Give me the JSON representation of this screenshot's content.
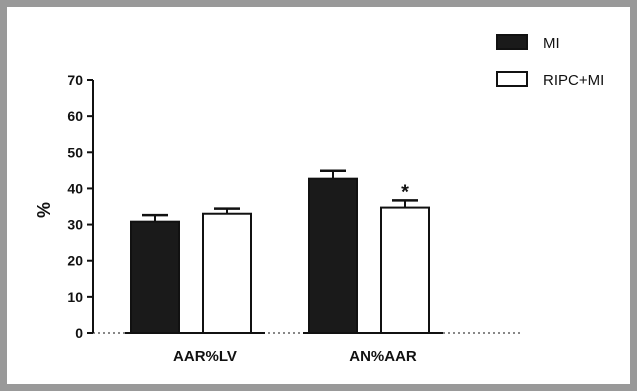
{
  "chart_data": {
    "type": "bar",
    "categories": [
      "AAR%LV",
      "AN%AAR"
    ],
    "series": [
      {
        "name": "MI",
        "values": [
          30.8,
          42.7
        ],
        "errors": [
          1.8,
          2.2
        ],
        "color": "#1a1a1a"
      },
      {
        "name": "RIPC+MI",
        "values": [
          33.0,
          34.7
        ],
        "errors": [
          1.4,
          2.0
        ],
        "color": "#ffffff"
      }
    ],
    "title": "",
    "xlabel": "",
    "ylabel": "%",
    "ylim": [
      0,
      70
    ],
    "yticks": [
      "0",
      "10",
      "20",
      "30",
      "40",
      "50",
      "60",
      "70"
    ],
    "grid": false,
    "legend_position": "top-right",
    "annotations": [
      {
        "text": "*",
        "category": "AN%AAR",
        "series": "RIPC+MI"
      }
    ]
  }
}
